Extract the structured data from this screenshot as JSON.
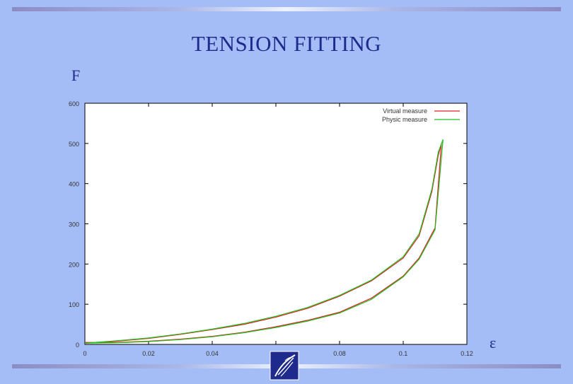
{
  "slide": {
    "title": "TENSION FITTING",
    "y_symbol": "F",
    "x_symbol": "ε"
  },
  "colors": {
    "background": "#a5bdf7",
    "title": "#1e2a8c",
    "virtual": "#e02020",
    "physic": "#20c020"
  },
  "logo": {
    "icon": "quill-logo-icon"
  },
  "chart_data": {
    "type": "line",
    "title": "",
    "xlabel": "",
    "ylabel": "",
    "xlim": [
      0,
      0.12
    ],
    "ylim": [
      0,
      600
    ],
    "x_ticks": [
      "0",
      "0.02",
      "0.04",
      "0.06",
      "0.08",
      "0.1",
      "0.12"
    ],
    "y_ticks": [
      "0",
      "100",
      "200",
      "300",
      "400",
      "500",
      "600"
    ],
    "grid": false,
    "legend_position": "top-right",
    "series": [
      {
        "name": "Virtual measure",
        "color": "#e02020",
        "x": [
          0,
          0.01,
          0.02,
          0.03,
          0.04,
          0.05,
          0.06,
          0.07,
          0.08,
          0.09,
          0.1,
          0.105,
          0.11,
          0.112,
          0.111,
          0.109,
          0.105,
          0.1,
          0.09,
          0.08,
          0.07,
          0.06,
          0.05,
          0.04,
          0.03,
          0.02,
          0.01,
          0
        ],
        "y": [
          5,
          5,
          8,
          13,
          20,
          30,
          44,
          60,
          80,
          115,
          170,
          215,
          290,
          500,
          470,
          380,
          270,
          215,
          158,
          120,
          90,
          68,
          50,
          37,
          25,
          15,
          8,
          3
        ]
      },
      {
        "name": "Physic measure",
        "color": "#20c020",
        "x": [
          0,
          0.01,
          0.02,
          0.03,
          0.04,
          0.05,
          0.06,
          0.07,
          0.08,
          0.09,
          0.1,
          0.105,
          0.11,
          0.1125,
          0.111,
          0.109,
          0.105,
          0.1,
          0.09,
          0.08,
          0.07,
          0.06,
          0.05,
          0.04,
          0.03,
          0.02,
          0.01,
          0
        ],
        "y": [
          3,
          4,
          7,
          12,
          19,
          29,
          42,
          58,
          78,
          112,
          168,
          212,
          285,
          510,
          478,
          386,
          275,
          218,
          160,
          122,
          92,
          70,
          52,
          38,
          26,
          16,
          9,
          3
        ]
      }
    ]
  }
}
